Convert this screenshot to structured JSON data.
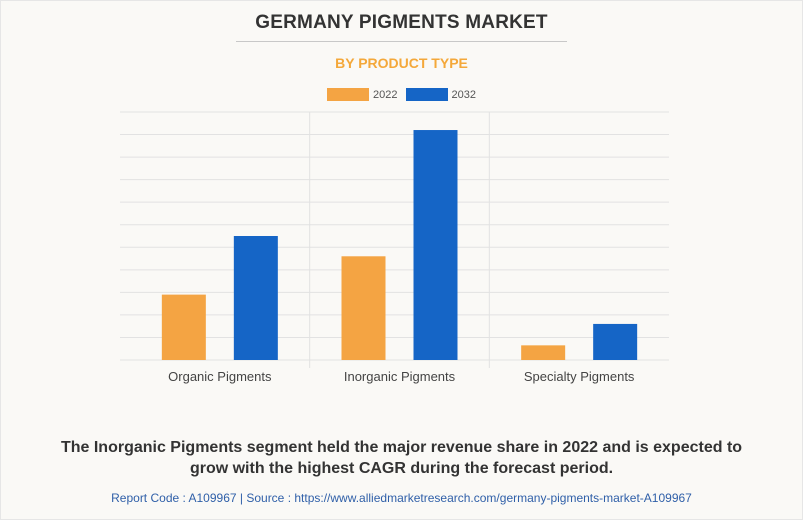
{
  "title": "GERMANY PIGMENTS MARKET",
  "subtitle": "BY PRODUCT TYPE",
  "caption_line1": "The Inorganic Pigments segment held the major revenue share in 2022 and is expected to",
  "caption_line2": "grow with the highest CAGR during the forecast period.",
  "footer": "Report Code : A109967  |  Source : https://www.alliedmarketresearch.com/germany-pigments-market-A109967",
  "colors": {
    "series_2022": "#f4a443",
    "series_2032": "#1565c6",
    "grid": "#e2e2e2",
    "axis_text": "#444444"
  },
  "chart_data": {
    "type": "bar",
    "categories": [
      "Organic Pigments",
      "Inorganic Pigments",
      "Specialty Pigments"
    ],
    "series": [
      {
        "name": "2022",
        "values": [
          29,
          46,
          6.5
        ]
      },
      {
        "name": "2032",
        "values": [
          55,
          102,
          16
        ]
      }
    ],
    "ylim": [
      0,
      110
    ],
    "grid": true,
    "legend_position": "top-center",
    "y_tick_labels_shown": false
  }
}
